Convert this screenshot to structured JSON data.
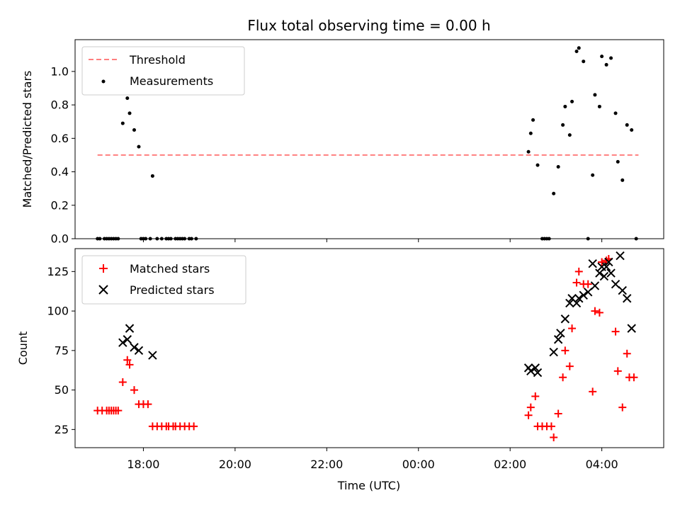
{
  "chart_data": {
    "title": "Flux total observing time = 0.00 h",
    "xlabel": "Time (UTC)",
    "x_axis": {
      "unit": "hours since 16:00 UTC on first day (continues past midnight)",
      "range_hours": [
        16.51,
        29.35
      ],
      "ticks": [
        {
          "h": 18,
          "label": "18:00"
        },
        {
          "h": 20,
          "label": "20:00"
        },
        {
          "h": 22,
          "label": "22:00"
        },
        {
          "h": 24,
          "label": "00:00"
        },
        {
          "h": 26,
          "label": "02:00"
        },
        {
          "h": 28,
          "label": "04:00"
        }
      ]
    },
    "panels": [
      {
        "id": "ratio",
        "type": "scatter",
        "ylabel": "Matched/Predicted stars",
        "ylim": [
          0.0,
          1.19
        ],
        "yticks": [
          "0.0",
          "0.2",
          "0.4",
          "0.6",
          "0.8",
          "1.0"
        ],
        "legend_position": "upper-left",
        "threshold": {
          "name": "Threshold",
          "value": 0.5,
          "x_range": [
            17.0,
            28.8
          ],
          "color": "#ff7f7f",
          "style": "dashed"
        },
        "series": [
          {
            "name": "Measurements",
            "marker": "dot",
            "color": "#000000",
            "points": [
              [
                17.0,
                0.0
              ],
              [
                17.05,
                0.0
              ],
              [
                17.15,
                0.0
              ],
              [
                17.2,
                0.0
              ],
              [
                17.25,
                0.0
              ],
              [
                17.3,
                0.0
              ],
              [
                17.35,
                0.0
              ],
              [
                17.4,
                0.0
              ],
              [
                17.45,
                0.0
              ],
              [
                17.55,
                0.69
              ],
              [
                17.65,
                0.84
              ],
              [
                17.7,
                0.75
              ],
              [
                17.8,
                0.65
              ],
              [
                17.9,
                0.55
              ],
              [
                17.95,
                0.0
              ],
              [
                18.0,
                0.0
              ],
              [
                18.05,
                0.0
              ],
              [
                18.15,
                0.0
              ],
              [
                18.2,
                0.375
              ],
              [
                18.3,
                0.0
              ],
              [
                18.4,
                0.0
              ],
              [
                18.5,
                0.0
              ],
              [
                18.55,
                0.0
              ],
              [
                18.6,
                0.0
              ],
              [
                18.7,
                0.0
              ],
              [
                18.75,
                0.0
              ],
              [
                18.8,
                0.0
              ],
              [
                18.85,
                0.0
              ],
              [
                18.9,
                0.0
              ],
              [
                19.0,
                0.0
              ],
              [
                19.05,
                0.0
              ],
              [
                19.15,
                0.0
              ],
              [
                26.4,
                0.52
              ],
              [
                26.45,
                0.63
              ],
              [
                26.5,
                0.71
              ],
              [
                26.6,
                0.44
              ],
              [
                26.7,
                0.0
              ],
              [
                26.75,
                0.0
              ],
              [
                26.8,
                0.0
              ],
              [
                26.85,
                0.0
              ],
              [
                26.95,
                0.27
              ],
              [
                27.05,
                0.43
              ],
              [
                27.15,
                0.68
              ],
              [
                27.2,
                0.79
              ],
              [
                27.3,
                0.62
              ],
              [
                27.35,
                0.82
              ],
              [
                27.45,
                1.12
              ],
              [
                27.5,
                1.14
              ],
              [
                27.6,
                1.06
              ],
              [
                27.7,
                0.0
              ],
              [
                27.8,
                0.38
              ],
              [
                27.85,
                0.86
              ],
              [
                27.95,
                0.79
              ],
              [
                28.0,
                1.09
              ],
              [
                28.1,
                1.04
              ],
              [
                28.2,
                1.08
              ],
              [
                28.3,
                0.75
              ],
              [
                28.35,
                0.46
              ],
              [
                28.45,
                0.35
              ],
              [
                28.55,
                0.68
              ],
              [
                28.65,
                0.65
              ],
              [
                28.75,
                0.0
              ]
            ]
          }
        ]
      },
      {
        "id": "count",
        "type": "scatter",
        "ylabel": "Count",
        "ylim": [
          13.5,
          139.5
        ],
        "yticks": [
          "25",
          "50",
          "75",
          "100",
          "125"
        ],
        "legend_position": "upper-left",
        "series": [
          {
            "name": "Matched stars",
            "marker": "plus",
            "color": "#ff0000",
            "points": [
              [
                17.0,
                37
              ],
              [
                17.1,
                37
              ],
              [
                17.2,
                37
              ],
              [
                17.25,
                37
              ],
              [
                17.3,
                37
              ],
              [
                17.35,
                37
              ],
              [
                17.4,
                37
              ],
              [
                17.45,
                37
              ],
              [
                17.55,
                55
              ],
              [
                17.65,
                69
              ],
              [
                17.7,
                66
              ],
              [
                17.8,
                50
              ],
              [
                17.9,
                41
              ],
              [
                18.0,
                41
              ],
              [
                18.1,
                41
              ],
              [
                18.2,
                27
              ],
              [
                18.3,
                27
              ],
              [
                18.4,
                27
              ],
              [
                18.5,
                27
              ],
              [
                18.55,
                27
              ],
              [
                18.65,
                27
              ],
              [
                18.7,
                27
              ],
              [
                18.8,
                27
              ],
              [
                18.9,
                27
              ],
              [
                19.0,
                27
              ],
              [
                19.1,
                27
              ],
              [
                26.4,
                34
              ],
              [
                26.45,
                39
              ],
              [
                26.55,
                46
              ],
              [
                26.6,
                27
              ],
              [
                26.7,
                27
              ],
              [
                26.8,
                27
              ],
              [
                26.9,
                27
              ],
              [
                26.95,
                20
              ],
              [
                27.05,
                35
              ],
              [
                27.15,
                58
              ],
              [
                27.2,
                75
              ],
              [
                27.3,
                65
              ],
              [
                27.35,
                89
              ],
              [
                27.45,
                118
              ],
              [
                27.5,
                125
              ],
              [
                27.6,
                117
              ],
              [
                27.7,
                117
              ],
              [
                27.8,
                49
              ],
              [
                27.85,
                100
              ],
              [
                27.95,
                99
              ],
              [
                28.0,
                131
              ],
              [
                28.1,
                132
              ],
              [
                28.15,
                133
              ],
              [
                28.3,
                87
              ],
              [
                28.35,
                62
              ],
              [
                28.45,
                39
              ],
              [
                28.55,
                73
              ],
              [
                28.6,
                58
              ],
              [
                28.7,
                58
              ]
            ]
          },
          {
            "name": "Predicted stars",
            "marker": "x",
            "color": "#000000",
            "points": [
              [
                17.55,
                80
              ],
              [
                17.65,
                82
              ],
              [
                17.7,
                89
              ],
              [
                17.8,
                77
              ],
              [
                17.9,
                75
              ],
              [
                18.2,
                72
              ],
              [
                26.4,
                64
              ],
              [
                26.45,
                62
              ],
              [
                26.55,
                64
              ],
              [
                26.6,
                61
              ],
              [
                26.95,
                74
              ],
              [
                27.05,
                82
              ],
              [
                27.1,
                86
              ],
              [
                27.2,
                95
              ],
              [
                27.3,
                105
              ],
              [
                27.35,
                108
              ],
              [
                27.45,
                105
              ],
              [
                27.5,
                108
              ],
              [
                27.6,
                110
              ],
              [
                27.7,
                112
              ],
              [
                27.8,
                130
              ],
              [
                27.85,
                116
              ],
              [
                27.95,
                124
              ],
              [
                28.0,
                128
              ],
              [
                28.05,
                122
              ],
              [
                28.1,
                128
              ],
              [
                28.15,
                131
              ],
              [
                28.2,
                124
              ],
              [
                28.3,
                117
              ],
              [
                28.4,
                135
              ],
              [
                28.45,
                113
              ],
              [
                28.55,
                108
              ],
              [
                28.65,
                89
              ]
            ]
          }
        ]
      }
    ]
  }
}
